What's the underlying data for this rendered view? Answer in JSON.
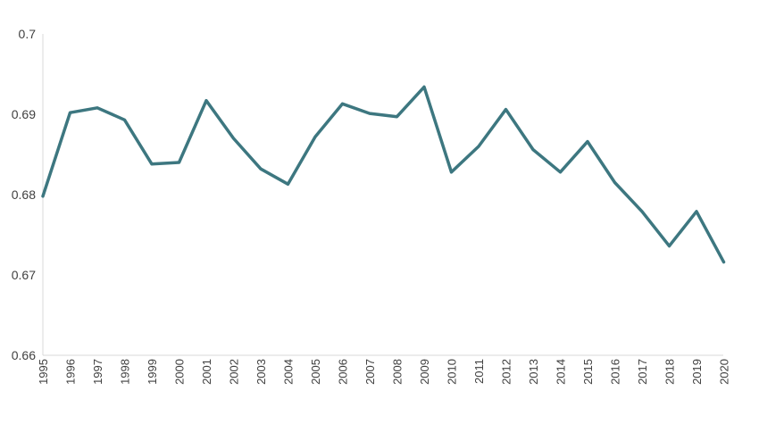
{
  "chart_data": {
    "type": "line",
    "title": "",
    "xlabel": "",
    "ylabel": "",
    "x": [
      "1995",
      "1996",
      "1997",
      "1998",
      "1999",
      "2000",
      "2001",
      "2002",
      "2003",
      "2004",
      "2005",
      "2006",
      "2007",
      "2008",
      "2009",
      "2010",
      "2011",
      "2012",
      "2013",
      "2014",
      "2015",
      "2016",
      "2017",
      "2018",
      "2019",
      "2020"
    ],
    "series": [
      {
        "values": [
          0.6798,
          0.6902,
          0.6908,
          0.6893,
          0.6838,
          0.684,
          0.6917,
          0.687,
          0.6832,
          0.6813,
          0.6872,
          0.6913,
          0.6901,
          0.6897,
          0.6934,
          0.6828,
          0.686,
          0.6906,
          0.6856,
          0.6828,
          0.6866,
          0.6815,
          0.6779,
          0.6736,
          0.6779,
          0.6716
        ],
        "color": "#3d7780"
      }
    ],
    "ylim": [
      0.66,
      0.7
    ],
    "yticks": [
      "0.66",
      "0.67",
      "0.68",
      "0.69",
      "0.7"
    ],
    "grid": false,
    "legend": "none"
  }
}
